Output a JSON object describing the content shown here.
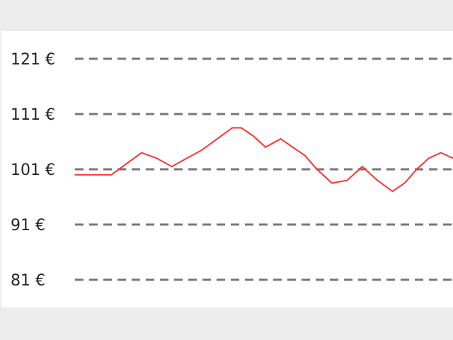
{
  "chart_data": {
    "type": "line",
    "title": "",
    "xlabel": "",
    "ylabel": "",
    "ylim": [
      78,
      127
    ],
    "yticks": [
      {
        "value": 121,
        "label": "121 €"
      },
      {
        "value": 111,
        "label": "111 €"
      },
      {
        "value": 101,
        "label": "101 €"
      },
      {
        "value": 91,
        "label": "91 €"
      },
      {
        "value": 81,
        "label": "81 €"
      }
    ],
    "grid": true,
    "legend": "none",
    "series": [
      {
        "color": "#ff3333",
        "x": [
          0,
          7,
          12,
          17,
          22,
          27,
          32,
          37,
          42,
          47,
          52,
          55,
          59,
          63,
          68,
          72,
          76,
          80,
          85,
          90,
          95,
          100,
          105,
          109,
          113,
          117,
          121,
          125
        ],
        "y": [
          100,
          100,
          100,
          102,
          104,
          103,
          101.5,
          103,
          104.5,
          106.5,
          108.5,
          108.5,
          107,
          105,
          106.5,
          105,
          103.5,
          101,
          98.5,
          99,
          101.5,
          99,
          97,
          98.5,
          101,
          103,
          104,
          103
        ]
      }
    ]
  }
}
